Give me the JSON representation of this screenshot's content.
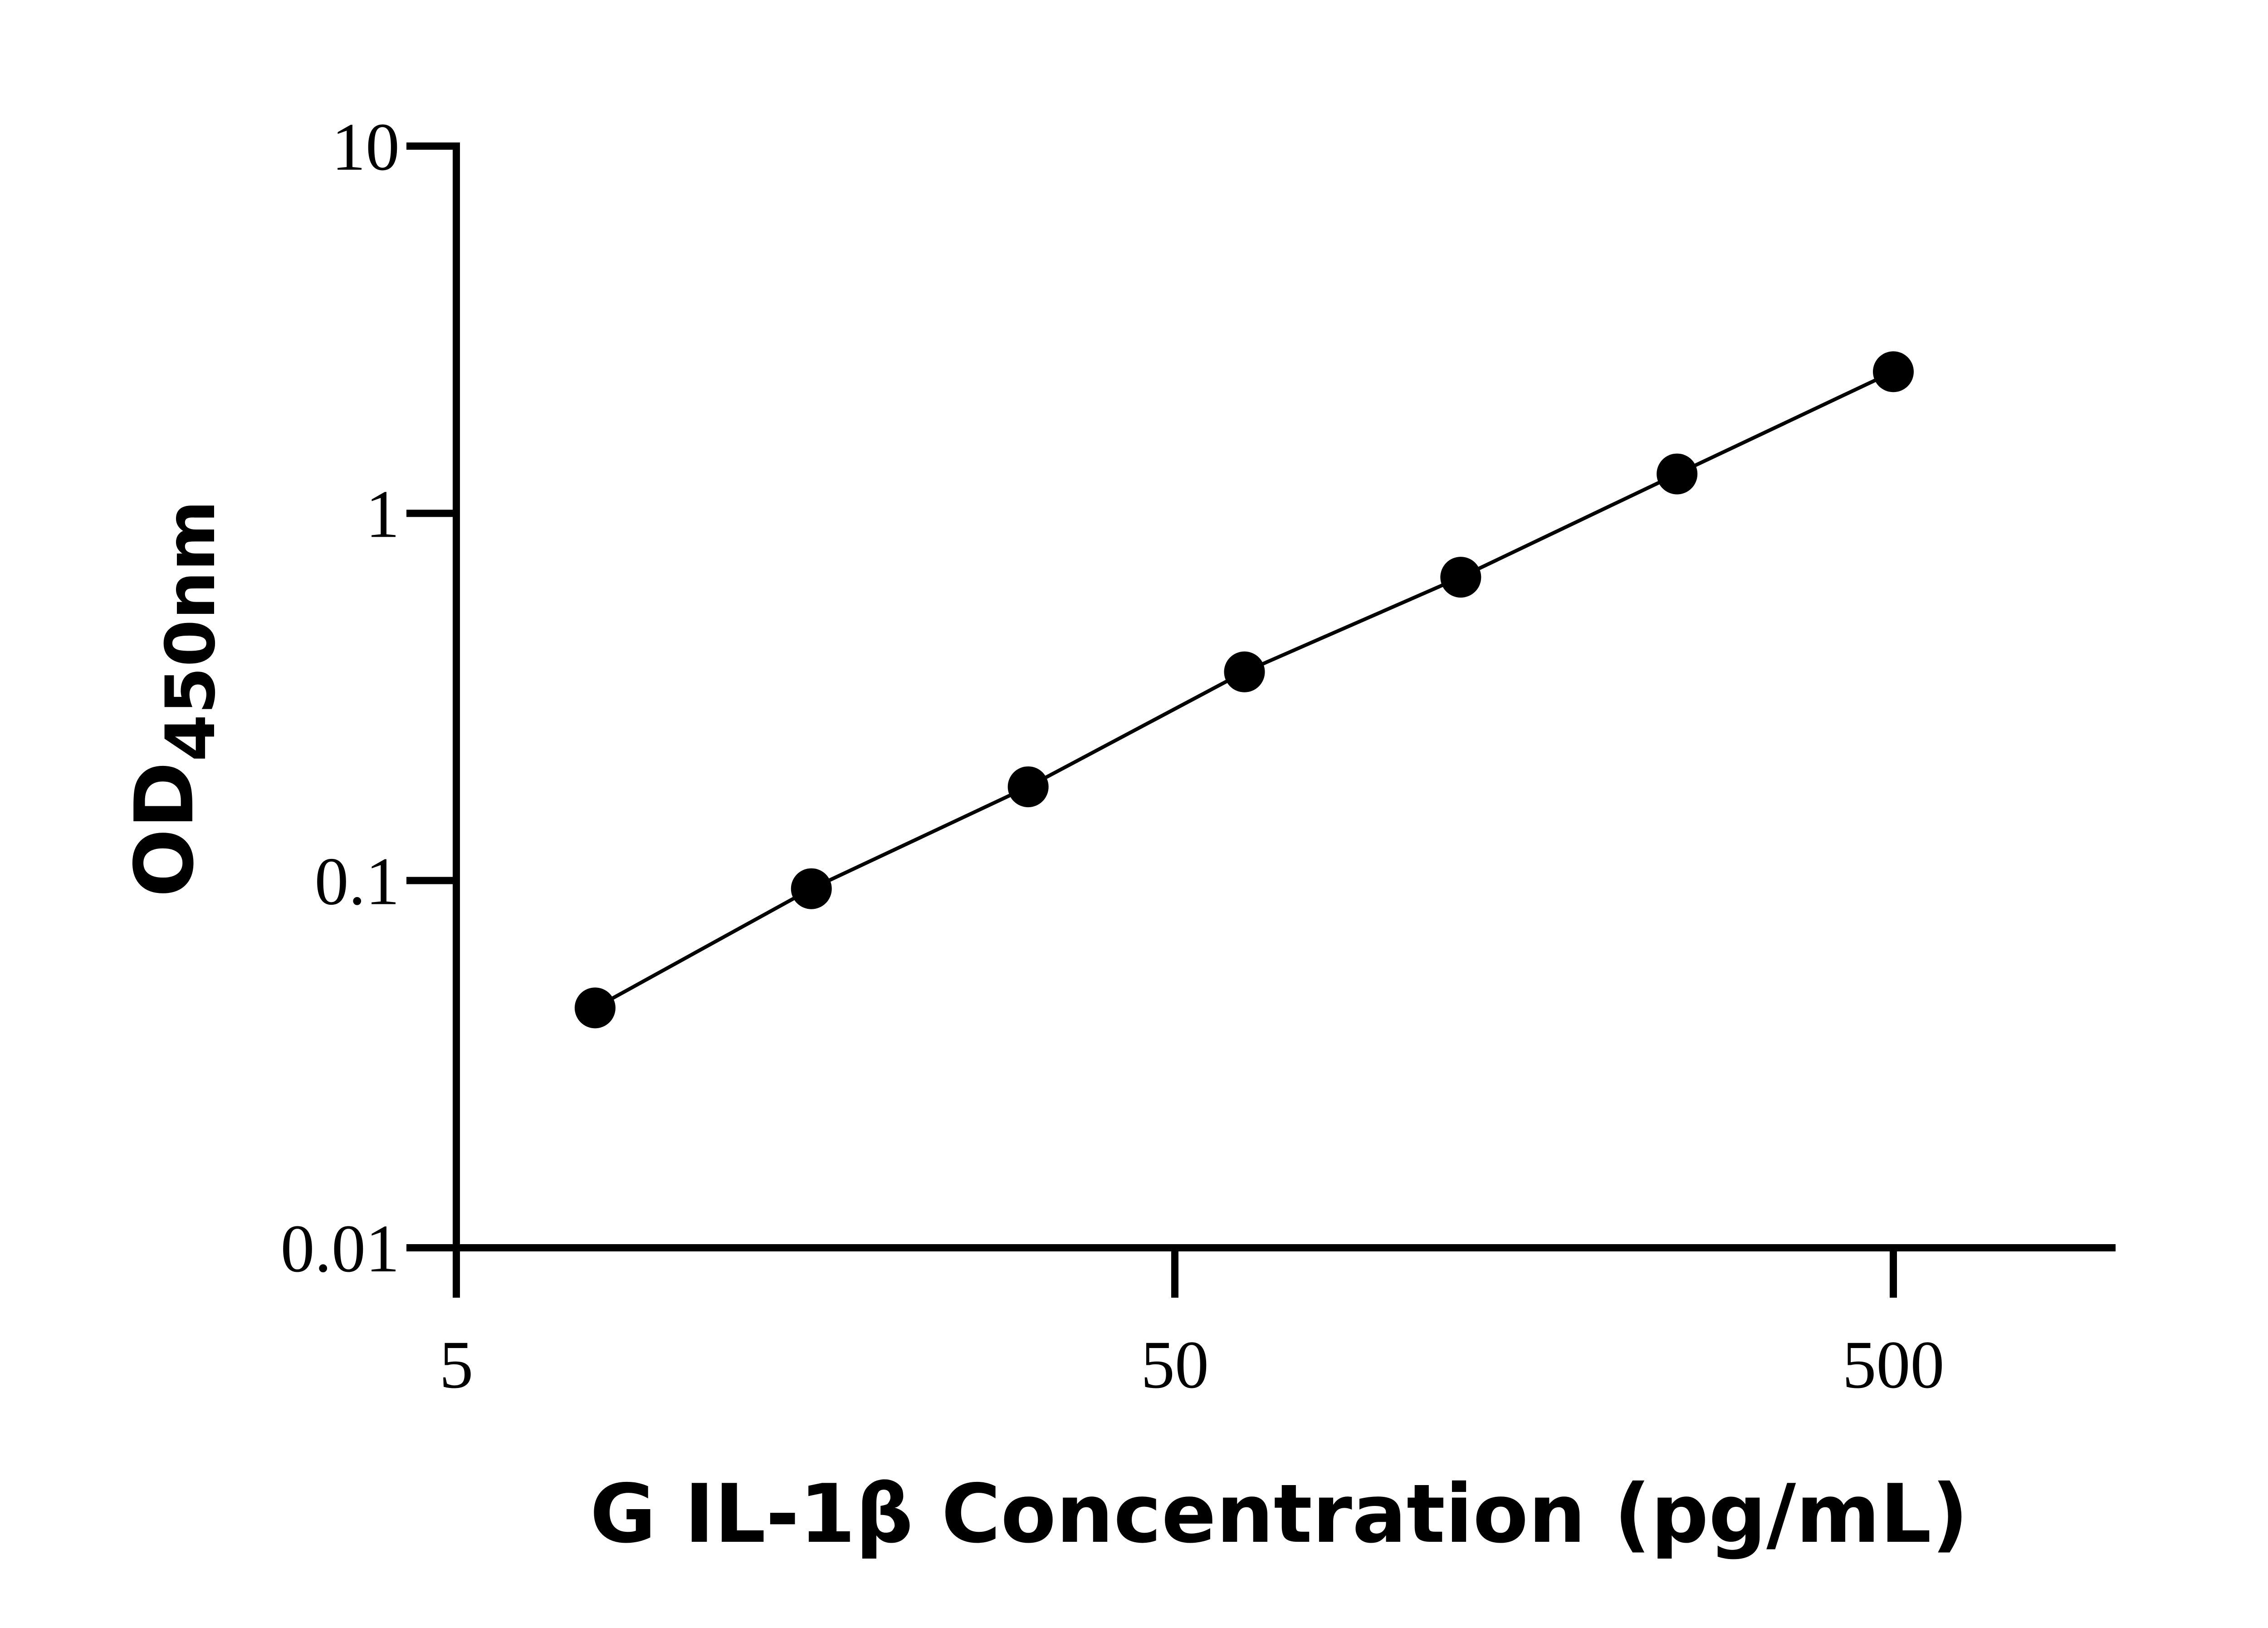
{
  "chart_data": {
    "type": "scatter",
    "title": "",
    "xlabel": "G IL-1β Concentration (pg/mL)",
    "ylabel": {
      "main": "OD",
      "subscript": "450nm"
    },
    "xscale": "log",
    "yscale": "log",
    "xlim": [
      5,
      1000
    ],
    "ylim": [
      0.01,
      10
    ],
    "xticks": [
      5,
      50,
      500
    ],
    "xtick_labels": [
      "5",
      "50",
      "500"
    ],
    "yticks": [
      0.01,
      0.1,
      1,
      10
    ],
    "ytick_labels": [
      "0.01",
      "0.1",
      "1",
      "10"
    ],
    "grid": false,
    "legend": "none",
    "series": [
      {
        "marker": "filled-circle",
        "line": "fitted-curve",
        "color": "#000000",
        "points": [
          {
            "x": 7.8,
            "y": 0.045
          },
          {
            "x": 15.6,
            "y": 0.095
          },
          {
            "x": 31.25,
            "y": 0.18
          },
          {
            "x": 62.5,
            "y": 0.37
          },
          {
            "x": 125,
            "y": 0.67
          },
          {
            "x": 250,
            "y": 1.28
          },
          {
            "x": 500,
            "y": 2.43
          }
        ]
      }
    ]
  }
}
